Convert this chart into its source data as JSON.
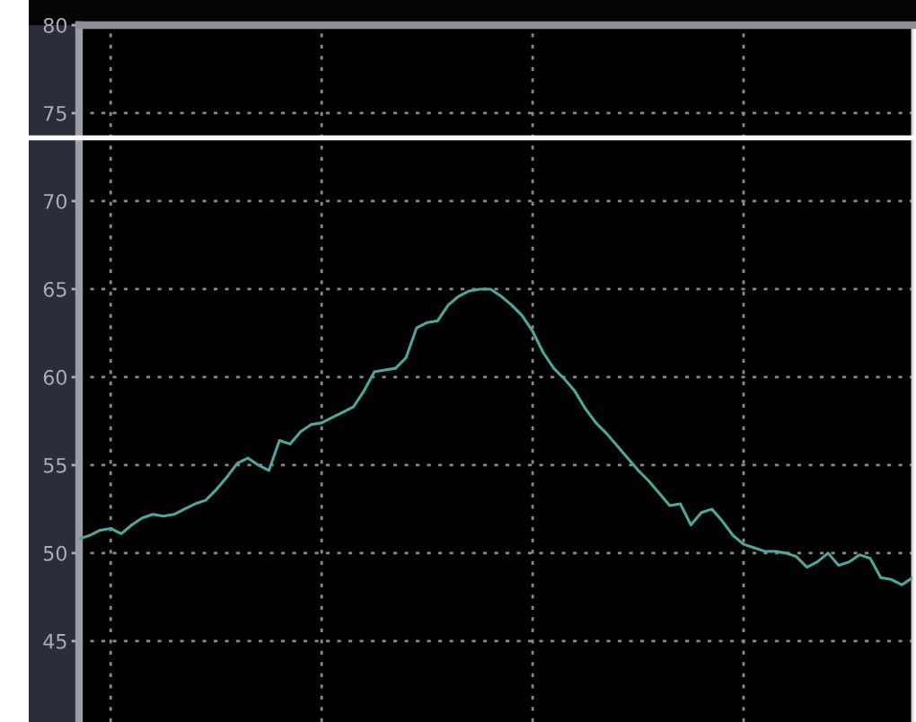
{
  "chart_data": {
    "type": "line",
    "categories": [
      null,
      null,
      null,
      null,
      null,
      null,
      null,
      null,
      null,
      null,
      null,
      null,
      null,
      null,
      null,
      null,
      null,
      null,
      null,
      null,
      null,
      null,
      null,
      null,
      null,
      null,
      null,
      null,
      null,
      null,
      null,
      null,
      null,
      null,
      null,
      null,
      null,
      null,
      null,
      null,
      null,
      null,
      null,
      null,
      null,
      null,
      null,
      null,
      null,
      null,
      null,
      null,
      null,
      null,
      null,
      null,
      null,
      null,
      null,
      null,
      null,
      null,
      null,
      null,
      null,
      null,
      null,
      null,
      null,
      null,
      null,
      null,
      null,
      null,
      null,
      null,
      null,
      null,
      null,
      null
    ],
    "values": [
      50.8,
      51.0,
      51.3,
      51.4,
      51.1,
      51.6,
      52.0,
      52.2,
      52.1,
      52.2,
      52.5,
      52.8,
      53.0,
      53.6,
      54.3,
      55.1,
      55.4,
      55.0,
      54.7,
      56.4,
      56.2,
      56.9,
      57.3,
      57.4,
      57.7,
      58.0,
      58.3,
      59.2,
      60.3,
      60.4,
      60.5,
      61.1,
      62.8,
      63.1,
      63.2,
      64.1,
      64.6,
      64.9,
      65.0,
      65.0,
      64.6,
      64.1,
      63.5,
      62.6,
      61.4,
      60.5,
      59.9,
      59.2,
      58.2,
      57.4,
      56.8,
      56.1,
      55.4,
      54.7,
      54.1,
      53.4,
      52.7,
      52.8,
      51.6,
      52.3,
      52.5,
      51.8,
      51.0,
      50.5,
      50.3,
      50.1,
      50.1,
      50.0,
      49.8,
      49.2,
      49.5,
      50.0,
      49.3,
      49.5,
      49.9,
      49.7,
      48.6,
      48.5,
      48.2,
      48.6
    ],
    "color": "#4aa89c",
    "line_style": "solid",
    "ylim": [
      40.4,
      80
    ],
    "yticks": [
      45,
      50,
      55,
      60,
      65,
      70,
      75,
      80
    ],
    "tick_labels": "y",
    "grid": true,
    "ref_lines": [
      {
        "axis": "y",
        "value": 73.6,
        "color": "#ffffff"
      }
    ]
  }
}
